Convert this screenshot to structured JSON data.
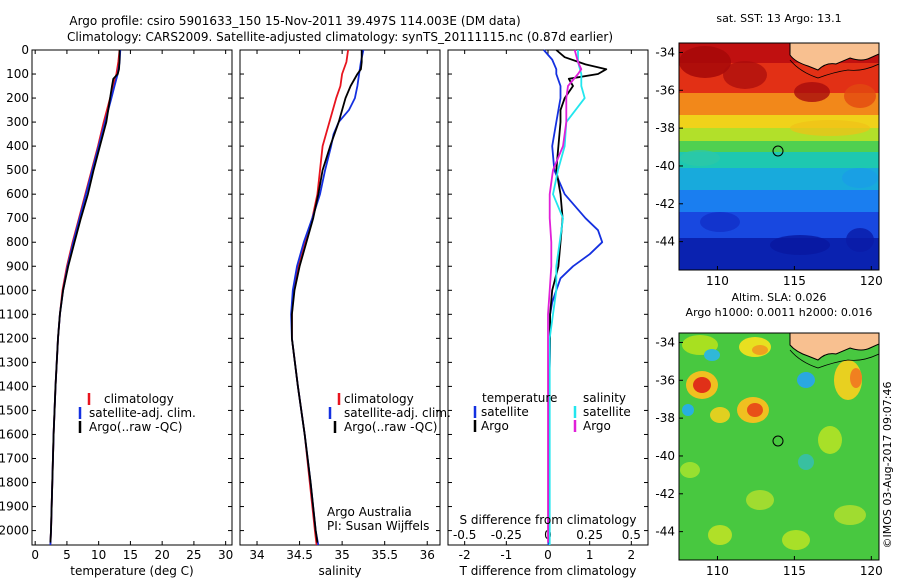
{
  "header": {
    "line1": "Argo profile: csiro 5901633_150 15-Nov-2011 39.497S 114.003E (DM data)",
    "line2": "Climatology: CARS2009. Satellite-adjusted climatology: synTS_20111115.nc (0.87d earlier)"
  },
  "colors": {
    "climatology": "#e8141e",
    "satellite": "#1430e0",
    "argo": "#000000",
    "sal_sat": "#22e6ee",
    "sal_argo": "#e020d8"
  },
  "chart_data": [
    {
      "type": "line",
      "id": "temperature",
      "xlabel": "temperature (deg C)",
      "xlim": [
        -0.5,
        31
      ],
      "xticks": [
        0,
        5,
        10,
        15,
        20,
        25,
        30
      ],
      "ylim": [
        2060,
        0
      ],
      "yticks": [
        0,
        100,
        200,
        300,
        400,
        500,
        600,
        700,
        800,
        900,
        1000,
        1100,
        1200,
        1300,
        1400,
        1500,
        1600,
        1700,
        1800,
        1900,
        2000
      ],
      "legend": [
        "climatology",
        "satellite-adj. clim.",
        "Argo(..raw -QC)"
      ],
      "legend_position": "lower-left",
      "series": [
        {
          "name": "climatology",
          "color": "#e8141e",
          "depth": [
            0,
            50,
            100,
            150,
            200,
            300,
            400,
            500,
            600,
            700,
            800,
            900,
            1000,
            1100,
            1200,
            1400,
            1600,
            1800,
            2000,
            2060
          ],
          "values": [
            13.3,
            13.1,
            12.8,
            12.3,
            11.8,
            10.8,
            9.9,
            8.9,
            7.9,
            6.9,
            5.9,
            5.0,
            4.3,
            3.9,
            3.6,
            3.2,
            2.9,
            2.7,
            2.5,
            2.4
          ]
        },
        {
          "name": "satellite-adj. clim.",
          "color": "#1430e0",
          "depth": [
            0,
            50,
            100,
            150,
            200,
            300,
            400,
            500,
            600,
            700,
            800,
            900,
            1000,
            1100,
            1200,
            1400,
            1600,
            1800,
            2000,
            2060
          ],
          "values": [
            13.4,
            13.3,
            13.0,
            12.5,
            12.0,
            11.0,
            10.0,
            9.0,
            8.0,
            7.0,
            6.0,
            5.1,
            4.4,
            3.9,
            3.6,
            3.2,
            2.9,
            2.7,
            2.5,
            2.4
          ]
        },
        {
          "name": "Argo(..raw -QC)",
          "color": "#000000",
          "depth": [
            0,
            40,
            80,
            100,
            120,
            150,
            200,
            300,
            400,
            500,
            600,
            700,
            800,
            900,
            1000,
            1100,
            1200,
            1400,
            1600,
            1800,
            2000,
            2050
          ],
          "values": [
            13.3,
            13.3,
            13.2,
            13.0,
            12.3,
            12.1,
            11.8,
            11.2,
            10.2,
            9.2,
            8.3,
            7.2,
            6.2,
            5.2,
            4.4,
            3.9,
            3.6,
            3.2,
            2.9,
            2.7,
            2.5,
            2.4
          ]
        }
      ]
    },
    {
      "type": "line",
      "id": "salinity",
      "xlabel": "salinity",
      "xlim": [
        33.8,
        36.15
      ],
      "xticks": [
        34,
        34.5,
        35,
        35.5,
        36
      ],
      "ylim": [
        2060,
        0
      ],
      "legend": [
        "climatology",
        "satellite-adj. clim.",
        "Argo(..raw -QC)"
      ],
      "legend_position": "lower-left",
      "annotation": [
        "Argo Australia",
        "PI: Susan Wijffels"
      ],
      "series": [
        {
          "name": "climatology",
          "color": "#e8141e",
          "depth": [
            0,
            50,
            100,
            150,
            200,
            300,
            400,
            500,
            600,
            700,
            800,
            900,
            1000,
            1100,
            1200,
            1400,
            1600,
            1800,
            2000,
            2060
          ],
          "values": [
            35.07,
            35.05,
            35.0,
            34.98,
            34.93,
            34.85,
            34.77,
            34.74,
            34.71,
            34.65,
            34.56,
            34.48,
            34.43,
            34.41,
            34.41,
            34.48,
            34.56,
            34.62,
            34.68,
            34.7
          ]
        },
        {
          "name": "satellite-adj. clim.",
          "color": "#1430e0",
          "depth": [
            0,
            50,
            100,
            150,
            200,
            250,
            300,
            350,
            400,
            500,
            600,
            700,
            800,
            900,
            1000,
            1100,
            1200,
            1400,
            1600,
            1800,
            2000,
            2060
          ],
          "values": [
            35.25,
            35.22,
            35.2,
            35.18,
            35.15,
            35.08,
            34.96,
            34.9,
            34.87,
            34.8,
            34.74,
            34.65,
            34.55,
            34.47,
            34.42,
            34.4,
            34.41,
            34.48,
            34.56,
            34.63,
            34.69,
            34.72
          ]
        },
        {
          "name": "Argo(..raw -QC)",
          "color": "#000000",
          "depth": [
            0,
            50,
            80,
            100,
            150,
            200,
            300,
            400,
            500,
            600,
            700,
            800,
            900,
            1000,
            1100,
            1200,
            1400,
            1600,
            1800,
            2000,
            2050
          ],
          "values": [
            35.23,
            35.23,
            35.22,
            35.18,
            35.1,
            35.04,
            34.96,
            34.86,
            34.77,
            34.72,
            34.66,
            34.58,
            34.5,
            34.44,
            34.41,
            34.41,
            34.48,
            34.56,
            34.63,
            34.69,
            34.71
          ]
        }
      ]
    },
    {
      "type": "line",
      "id": "difference",
      "xlabel": "T difference from climatology",
      "xlabel_top": "S difference from climatology",
      "xlim": [
        -2.4,
        2.4
      ],
      "xticks": [
        -2,
        -1,
        0,
        1,
        2
      ],
      "xticks_top_labels": [
        "-0.5",
        "-0.25",
        "0",
        "0.25",
        "0.5"
      ],
      "ylim": [
        2060,
        0
      ],
      "legend_left": {
        "header": "temperature",
        "items": [
          "satellite",
          "Argo"
        ]
      },
      "legend_right": {
        "header": "salinity",
        "items": [
          "satellite",
          "Argo"
        ]
      },
      "series": [
        {
          "name": "satellite",
          "group": "temperature",
          "color": "#1430e0",
          "depth": [
            0,
            40,
            80,
            100,
            150,
            200,
            300,
            400,
            500,
            600,
            700,
            750,
            800,
            850,
            900,
            950,
            1000,
            1050,
            1100,
            1200,
            1400,
            1600,
            1800,
            2000,
            2060
          ],
          "values": [
            -0.1,
            0.1,
            0.2,
            0.2,
            0.3,
            0.3,
            0.2,
            0.1,
            0.15,
            0.4,
            0.9,
            1.2,
            1.3,
            1.0,
            0.6,
            0.3,
            0.2,
            0.1,
            0.05,
            0.05,
            0.03,
            0.03,
            0.02,
            0.01,
            0.01
          ]
        },
        {
          "name": "Argo",
          "group": "temperature",
          "color": "#000000",
          "depth": [
            0,
            30,
            60,
            80,
            100,
            120,
            150,
            200,
            250,
            300,
            400,
            500,
            600,
            700,
            800,
            900,
            1000,
            1100,
            1200,
            1400,
            1600,
            1800,
            2000,
            2050
          ],
          "values": [
            0.2,
            0.4,
            0.9,
            1.4,
            1.2,
            0.5,
            0.6,
            0.4,
            0.3,
            0.3,
            0.25,
            0.2,
            0.3,
            0.35,
            0.3,
            0.25,
            0.1,
            0.05,
            0.05,
            0.03,
            0.03,
            0.02,
            0.01,
            0.01
          ]
        },
        {
          "name": "satellite",
          "group": "salinity",
          "color": "#22e6ee",
          "depth": [
            0,
            50,
            100,
            150,
            200,
            300,
            400,
            500,
            600,
            700,
            800,
            900,
            1000,
            1100,
            1200,
            1400,
            1600,
            1800,
            2000,
            2060
          ],
          "values": [
            0.72,
            0.72,
            0.8,
            0.8,
            0.88,
            0.44,
            0.4,
            0.24,
            0.12,
            0.36,
            0.28,
            0.2,
            0.2,
            0.12,
            0.04,
            0.04,
            0.04,
            0.04,
            0.04,
            0.04
          ]
        },
        {
          "name": "Argo",
          "group": "salinity",
          "color": "#e020d8",
          "depth": [
            0,
            50,
            80,
            100,
            150,
            200,
            300,
            400,
            500,
            600,
            700,
            800,
            900,
            1000,
            1100,
            1200,
            1400,
            1600,
            1800,
            2000,
            2050
          ],
          "values": [
            0.64,
            0.72,
            0.8,
            0.72,
            0.48,
            0.44,
            0.44,
            0.36,
            0.12,
            0.04,
            0.04,
            0.08,
            0.08,
            0.04,
            0.0,
            0.0,
            0.0,
            0.0,
            0.0,
            0.0,
            0.0
          ]
        }
      ]
    },
    {
      "type": "heatmap",
      "id": "sst_map",
      "title": "sat. SST: 13  Argo: 13.1",
      "xlim": [
        107.5,
        120.5
      ],
      "xticks": [
        110,
        115,
        120
      ],
      "ylim": [
        -45.5,
        -33.5
      ],
      "yticks": [
        -34,
        -36,
        -38,
        -40,
        -42,
        -44
      ],
      "marker": {
        "lon": 114.003,
        "lat": -39.497
      }
    },
    {
      "type": "heatmap",
      "id": "sla_map",
      "title": [
        "Altim. SLA: 0.026",
        "Argo h1000: 0.0011  h2000: 0.016"
      ],
      "xlim": [
        107.5,
        120.5
      ],
      "xticks": [
        110,
        115,
        120
      ],
      "ylim": [
        -45.5,
        -33.5
      ],
      "yticks": [
        -34,
        -36,
        -38,
        -40,
        -42,
        -44
      ],
      "marker": {
        "lon": 114.003,
        "lat": -39.497
      }
    }
  ],
  "watermark": "©IMOS 03-Aug-2017 09:07:46"
}
